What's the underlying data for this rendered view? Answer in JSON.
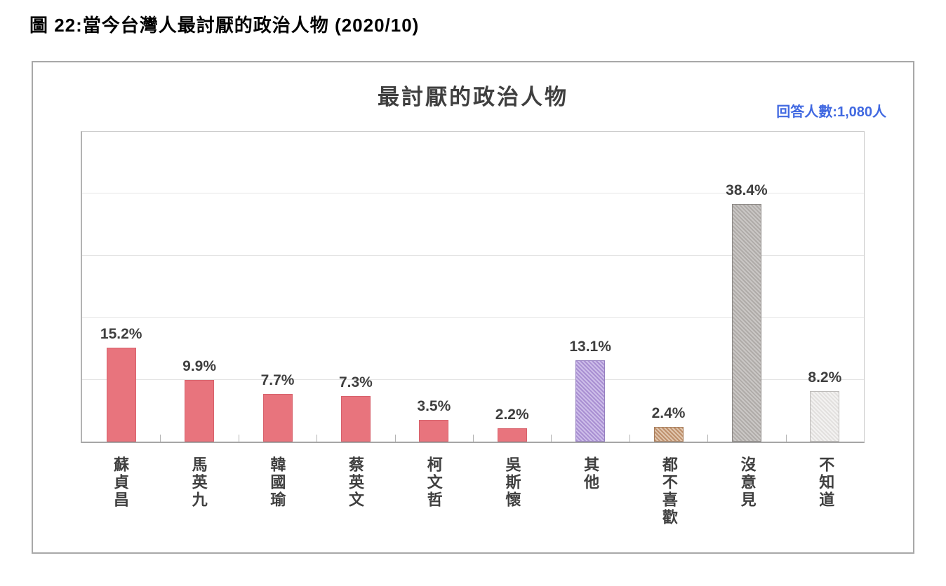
{
  "page_title": "圖 22:當今台灣人最討厭的政治人物 (2020/10)",
  "chart": {
    "title": "最討厭的政治人物",
    "respondents_label": "回答人數:1,080人",
    "respondents_color": "#4169E1"
  },
  "chart_data": {
    "type": "bar",
    "title": "最討厭的政治人物",
    "categories": [
      "蘇貞昌",
      "馬英九",
      "韓國瑜",
      "蔡英文",
      "柯文哲",
      "吳斯懷",
      "其他",
      "都不喜歡",
      "沒意見",
      "不知道"
    ],
    "values": [
      15.2,
      9.9,
      7.7,
      7.3,
      3.5,
      2.2,
      13.1,
      2.4,
      38.4,
      8.2
    ],
    "value_labels": [
      "15.2%",
      "9.9%",
      "7.7%",
      "7.3%",
      "3.5%",
      "2.2%",
      "13.1%",
      "2.4%",
      "38.4%",
      "8.2%"
    ],
    "ylim": [
      0,
      50
    ],
    "gridline_step": 10,
    "grid": true,
    "legend_position": "none",
    "bar_style_keys": [
      "solid-red",
      "solid-red",
      "solid-red",
      "solid-red",
      "solid-red",
      "solid-red",
      "hatch-purple",
      "hatch-brown",
      "hatch-gray",
      "hatch-lightgray"
    ],
    "bar_styles": {
      "solid-red": {
        "fill": "#E8747D",
        "hatch": null,
        "border": "#D7616B"
      },
      "hatch-purple": {
        "fill": "#A98FD2",
        "hatch": "#CDBEE9",
        "border": "#9680C0"
      },
      "hatch-brown": {
        "fill": "#BE8F6B",
        "hatch": "#E0C6AE",
        "border": "#A87E5C"
      },
      "hatch-gray": {
        "fill": "#AFABA8",
        "hatch": "#CAC7C5",
        "border": "#8C8885"
      },
      "hatch-lightgray": {
        "fill": "#E2E0DE",
        "hatch": "#F3F2F1",
        "border": "#BDBBB9"
      }
    }
  }
}
